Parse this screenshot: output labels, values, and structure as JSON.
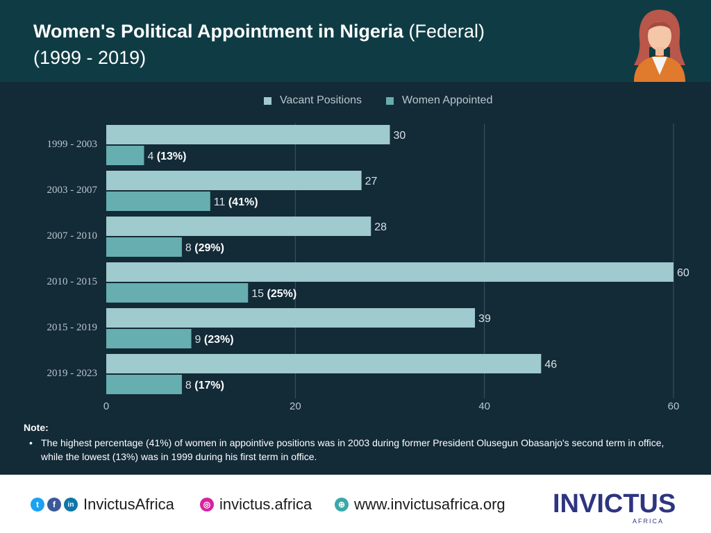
{
  "header": {
    "title_bold": "Women's Political Appointment in Nigeria",
    "title_light": " (Federal)",
    "title_line2": "(1999 - 2019)"
  },
  "colors": {
    "vacant": "#9fcace",
    "women": "#66aeb0",
    "header_bg": "#0f3c44",
    "panel_bg": "#132a37"
  },
  "chart_data": {
    "type": "bar",
    "orientation": "horizontal",
    "categories": [
      "1999 - 2003",
      "2003 - 2007",
      "2007 - 2010",
      "2010 - 2015",
      "2015 - 2019",
      "2019 - 2023"
    ],
    "series": [
      {
        "name": "Vacant Positions",
        "values": [
          30,
          27,
          28,
          60,
          39,
          46
        ],
        "labels": [
          "30",
          "27",
          "28",
          "60",
          "39",
          "46"
        ]
      },
      {
        "name": "Women Appointed",
        "values": [
          4,
          11,
          8,
          15,
          9,
          8
        ],
        "labels": [
          "4",
          "11",
          "8",
          "15",
          "9",
          "8"
        ],
        "percent_labels": [
          "(13%)",
          "(41%)",
          "(29%)",
          "(25%)",
          "(23%)",
          "(17%)"
        ]
      }
    ],
    "xlim": [
      0,
      60
    ],
    "xticks": [
      "0",
      "20",
      "40",
      "60"
    ],
    "legend_position": "top-center",
    "grid": "vertical"
  },
  "note": {
    "title": "Note:",
    "bullet": "•",
    "text": "The highest percentage (41%) of women in appointive positions was in 2003 during former President Olusegun Obasanjo's second term in office, while the lowest (13%) was in 1999 during his first term in office."
  },
  "footer": {
    "twitter_icon": "twitter-icon",
    "facebook_icon": "facebook-icon",
    "linkedin_icon": "linkedin-icon",
    "handle": "InvictusAfrica",
    "instagram_icon": "instagram-icon",
    "instagram": "invictus.africa",
    "globe_icon": "globe-icon",
    "website": "www.invictusafrica.org",
    "brand_name": "INVICTUS",
    "brand_sub": "AFRICA"
  }
}
